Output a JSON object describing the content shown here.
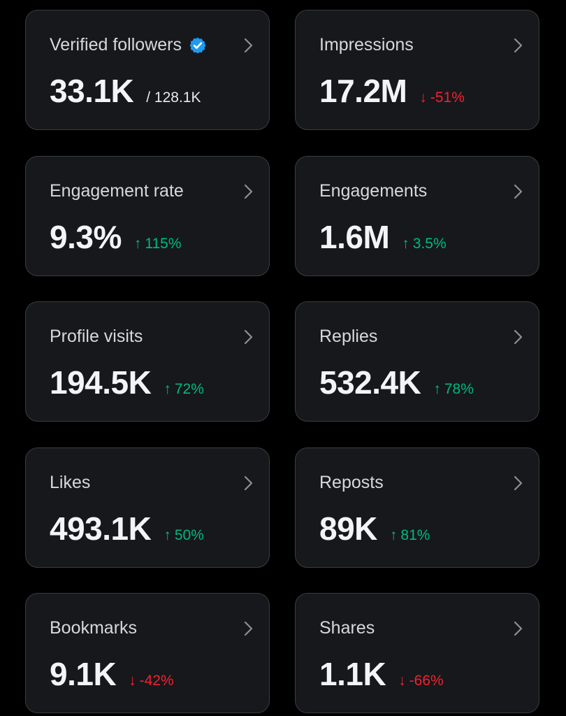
{
  "colors": {
    "background": "#000000",
    "card": "#16181c",
    "border": "#3a3d42",
    "up": "#00ba7c",
    "down": "#f4212e",
    "verified": "#1d9bf0"
  },
  "cards": [
    {
      "label": "Verified followers",
      "value": "33.1K",
      "total": "/ 128.1K",
      "verified_icon": "verified-badge-icon"
    },
    {
      "label": "Impressions",
      "value": "17.2M",
      "arrow": "↓",
      "delta": "-51%",
      "trend": "down"
    },
    {
      "label": "Engagement rate",
      "value": "9.3%",
      "arrow": "↑",
      "delta": "115%",
      "trend": "up"
    },
    {
      "label": "Engagements",
      "value": "1.6M",
      "arrow": "↑",
      "delta": "3.5%",
      "trend": "up"
    },
    {
      "label": "Profile visits",
      "value": "194.5K",
      "arrow": "↑",
      "delta": "72%",
      "trend": "up"
    },
    {
      "label": "Replies",
      "value": "532.4K",
      "arrow": "↑",
      "delta": "78%",
      "trend": "up"
    },
    {
      "label": "Likes",
      "value": "493.1K",
      "arrow": "↑",
      "delta": "50%",
      "trend": "up"
    },
    {
      "label": "Reposts",
      "value": "89K",
      "arrow": "↑",
      "delta": "81%",
      "trend": "up"
    },
    {
      "label": "Bookmarks",
      "value": "9.1K",
      "arrow": "↓",
      "delta": "-42%",
      "trend": "down"
    },
    {
      "label": "Shares",
      "value": "1.1K",
      "arrow": "↓",
      "delta": "-66%",
      "trend": "down"
    }
  ]
}
